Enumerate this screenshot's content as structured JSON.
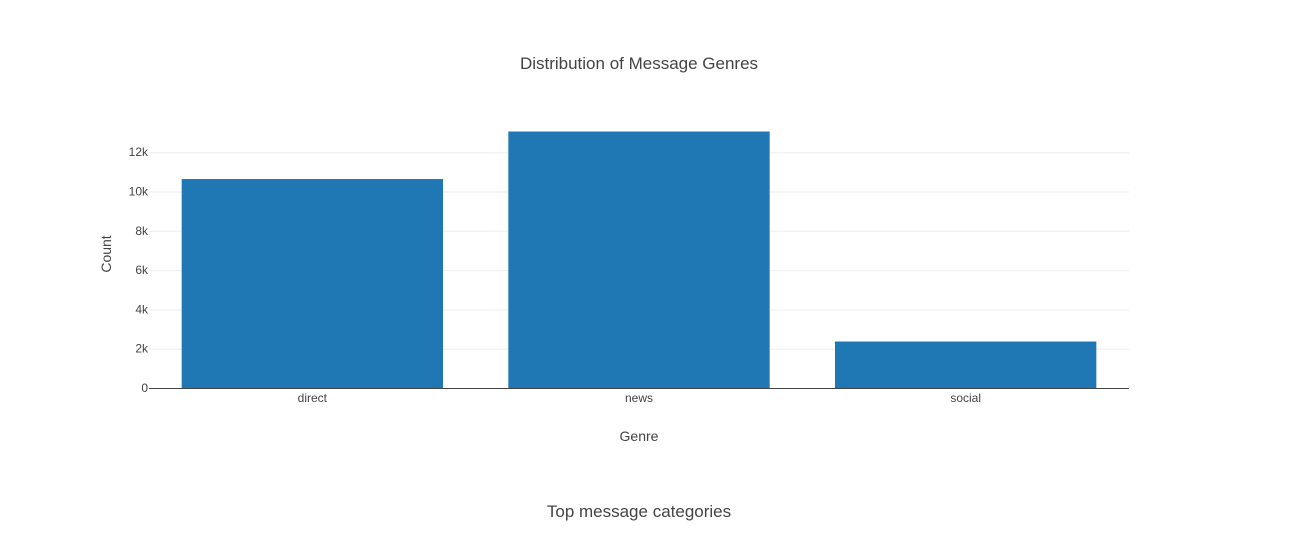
{
  "chart_data": {
    "type": "bar",
    "title": "Distribution of Message Genres",
    "xlabel": "Genre",
    "ylabel": "Count",
    "categories": [
      "direct",
      "news",
      "social"
    ],
    "values": [
      10634,
      13054,
      2366
    ],
    "ylim": [
      0,
      13741
    ],
    "yticks": [
      0,
      2000,
      4000,
      6000,
      8000,
      10000,
      12000
    ],
    "ytick_labels": [
      "0",
      "2k",
      "4k",
      "6k",
      "8k",
      "10k",
      "12k"
    ],
    "bar_color": "#1f77b4",
    "grid": true
  },
  "next_chart": {
    "title": "Top message categories"
  }
}
